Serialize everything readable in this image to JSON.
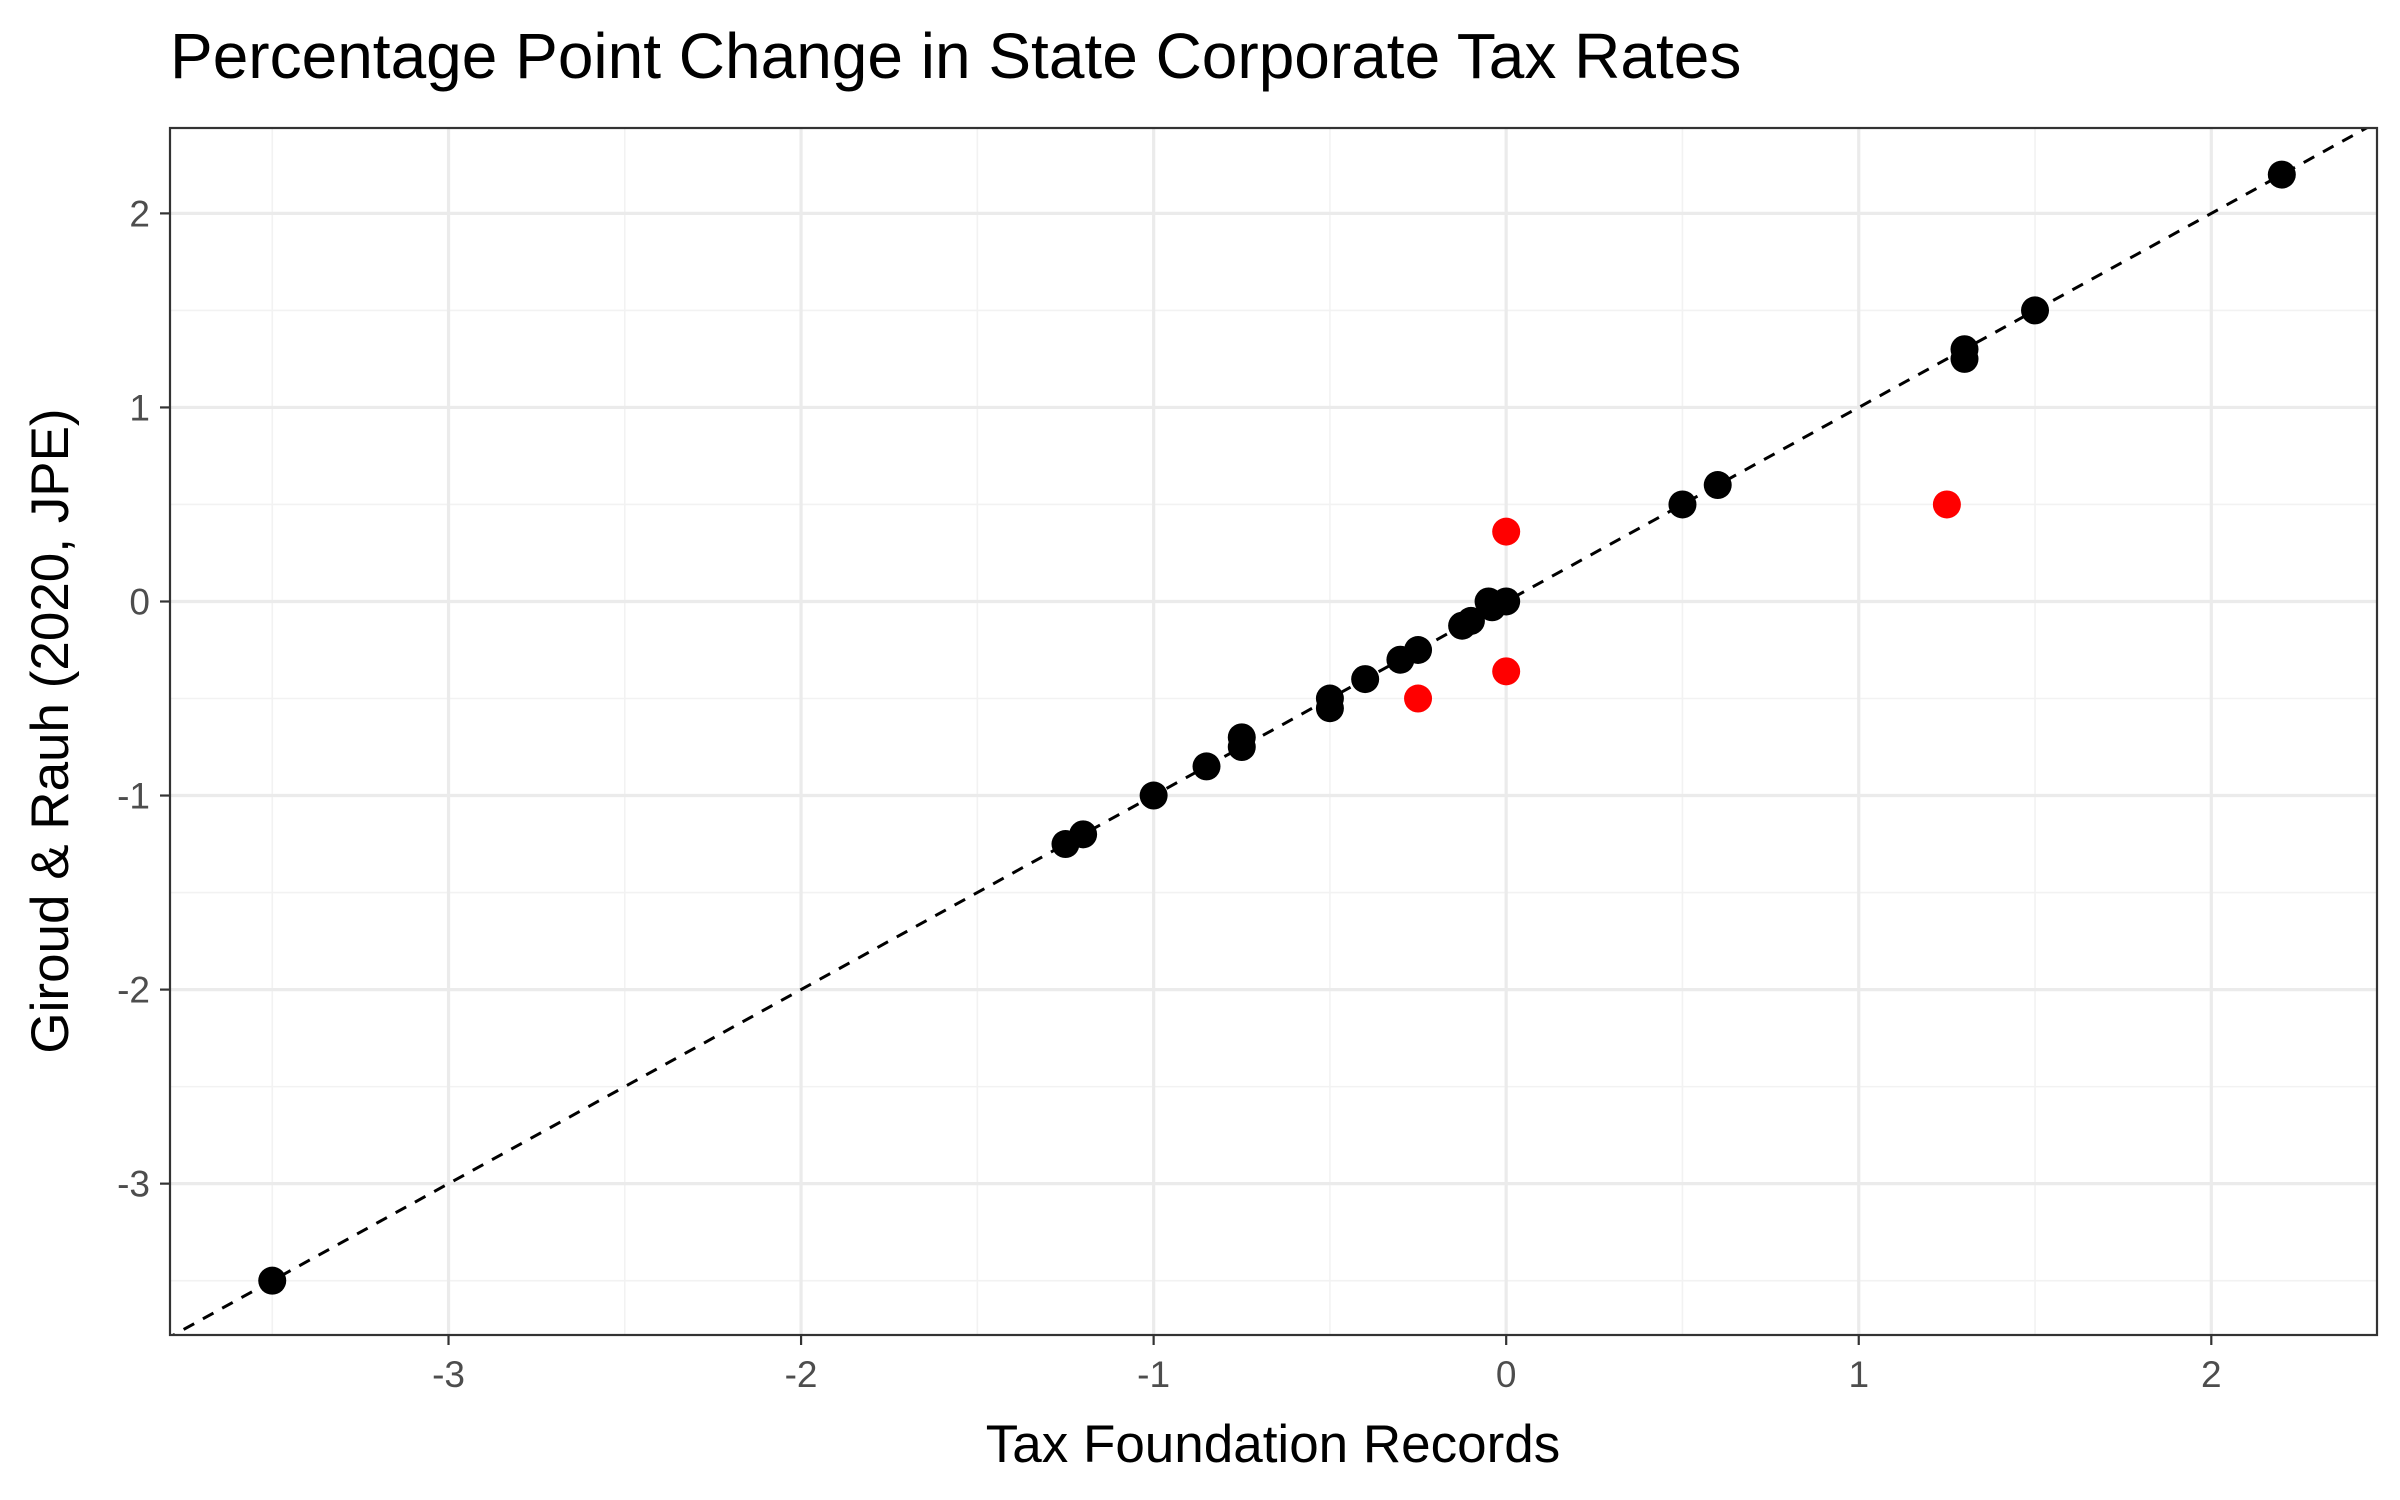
{
  "chart_data": {
    "type": "scatter",
    "title": "Percentage Point Change in State Corporate Tax Rates",
    "xlabel": "Tax Foundation Records",
    "ylabel": "Giroud & Rauh (2020, JPE)",
    "xlim": [
      -3.79,
      2.47
    ],
    "ylim": [
      -3.78,
      2.44
    ],
    "x_ticks": [
      -3,
      -2,
      -1,
      0,
      1,
      2
    ],
    "y_ticks": [
      -3,
      -2,
      -1,
      0,
      1,
      2
    ],
    "x_minor_ticks": [
      -3.5,
      -2.5,
      -1.5,
      -0.5,
      0.5,
      1.5
    ],
    "y_minor_ticks": [
      -3.5,
      -2.5,
      -1.5,
      -0.5,
      0.5,
      1.5
    ],
    "grid": true,
    "legend": "none",
    "reference_line": {
      "kind": "identity",
      "style": "dashed",
      "color": "#000000"
    },
    "series": [
      {
        "color": "#000000",
        "points": [
          {
            "x": -3.5,
            "y": -3.5
          },
          {
            "x": -1.25,
            "y": -1.25
          },
          {
            "x": -1.2,
            "y": -1.2
          },
          {
            "x": -1.0,
            "y": -1.0
          },
          {
            "x": -0.85,
            "y": -0.85
          },
          {
            "x": -0.75,
            "y": -0.75
          },
          {
            "x": -0.75,
            "y": -0.7
          },
          {
            "x": -0.5,
            "y": -0.5
          },
          {
            "x": -0.5,
            "y": -0.55
          },
          {
            "x": -0.4,
            "y": -0.4
          },
          {
            "x": -0.3,
            "y": -0.3
          },
          {
            "x": -0.25,
            "y": -0.25
          },
          {
            "x": -0.125,
            "y": -0.125
          },
          {
            "x": -0.1,
            "y": -0.1
          },
          {
            "x": -0.05,
            "y": 0.0
          },
          {
            "x": -0.04,
            "y": -0.03
          },
          {
            "x": 0.0,
            "y": 0.0
          },
          {
            "x": 0.5,
            "y": 0.5
          },
          {
            "x": 0.6,
            "y": 0.6
          },
          {
            "x": 1.3,
            "y": 1.3
          },
          {
            "x": 1.3,
            "y": 1.25
          },
          {
            "x": 1.5,
            "y": 1.5
          },
          {
            "x": 2.2,
            "y": 2.2
          }
        ]
      },
      {
        "color": "#ff0000",
        "points": [
          {
            "x": 0.0,
            "y": 0.36
          },
          {
            "x": 0.0,
            "y": -0.36
          },
          {
            "x": -0.25,
            "y": -0.5
          },
          {
            "x": 1.25,
            "y": 0.5
          }
        ]
      }
    ]
  }
}
